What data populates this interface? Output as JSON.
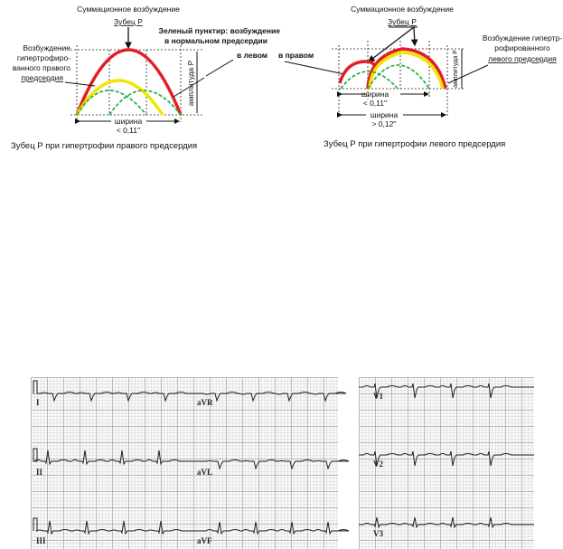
{
  "left_diagram": {
    "title_line1": "Суммационное возбуждение",
    "title_line2": "Зубец Р",
    "label_lines": [
      "Возбуждение",
      "гипертрофиро-",
      "ванного правого",
      "предсердия"
    ],
    "amplitude": "амплитуда Р",
    "width_label": "ширина",
    "width_value": "< 0,11''",
    "caption": "Зубец Р при гипертрофии правого предсердия"
  },
  "green_note": {
    "line1": "Зеленый пунктир: возбуждение",
    "line2": "в нормальном предсердии",
    "left": "в левом",
    "right": "в правом"
  },
  "right_diagram": {
    "title_line1": "Суммационное возбуждение",
    "title_line2": "Зубец Р",
    "label_lines": [
      "Возбуждение гипертр-",
      "рофированного",
      "левого предсердия"
    ],
    "amplitude": "амплитуда Р",
    "width1_label": "ширина",
    "width1_value": "< 0,11''",
    "width2_label": "ширина",
    "width2_value": "> 0,12''",
    "caption": "Зубец Р при гипертрофии левого предсердия"
  },
  "colors": {
    "summation": "#e31e24",
    "hypertrophied": "#f2e600",
    "normal": "#2db34a"
  },
  "ecg": {
    "leads_left": [
      "I",
      "aVR",
      "II",
      "aVL",
      "III",
      "aVF"
    ],
    "leads_right": [
      "V1",
      "V2",
      "V3"
    ]
  }
}
